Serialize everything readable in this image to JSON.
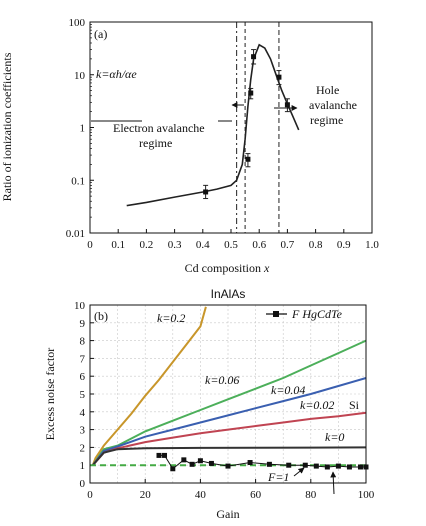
{
  "chart_data": [
    {
      "type": "line",
      "panel_label": "(a)",
      "title": "",
      "xlabel_text": "Cd composition",
      "xlabel_var": "x",
      "ylabel": "Ratio of ionization coefficients",
      "x_scale": "linear",
      "y_scale": "log",
      "xlim": [
        0,
        1.0
      ],
      "ylim": [
        0.01,
        100
      ],
      "x_ticks": [
        "0",
        "0.1",
        "0.2",
        "0.3",
        "0.4",
        "0.5",
        "0.6",
        "0.7",
        "0.8",
        "0.9",
        "1.0"
      ],
      "y_ticks": [
        "0.01",
        "0.1",
        "1",
        "10",
        "100"
      ],
      "grid": false,
      "legend": "none",
      "formula": "k=αh/αe",
      "annotations": {
        "electron_regime_line1": "Electron avalanche",
        "electron_regime_line2": "regime",
        "hole_regime_line1": "Hole",
        "hole_regime_line2": "avalanche",
        "hole_regime_line3": "regime"
      },
      "vertical_lines_x": [
        0.52,
        0.55,
        0.67
      ],
      "curve": {
        "x": [
          0.13,
          0.2,
          0.3,
          0.4,
          0.45,
          0.5,
          0.52,
          0.54,
          0.55,
          0.56,
          0.57,
          0.58,
          0.6,
          0.62,
          0.64,
          0.66,
          0.68,
          0.7,
          0.72,
          0.74
        ],
        "y": [
          0.033,
          0.038,
          0.048,
          0.06,
          0.068,
          0.08,
          0.1,
          0.2,
          0.6,
          2.5,
          8,
          20,
          37,
          32,
          20,
          10,
          5,
          2.8,
          1.6,
          0.9
        ]
      },
      "data_points": [
        {
          "x": 0.41,
          "y": 0.06,
          "err_lo": 0.045,
          "err_hi": 0.08
        },
        {
          "x": 0.56,
          "y": 0.25,
          "err_lo": 0.18,
          "err_hi": 0.32
        },
        {
          "x": 0.57,
          "y": 4.5,
          "err_lo": 3.5,
          "err_hi": 5.5
        },
        {
          "x": 0.58,
          "y": 22,
          "err_lo": 16,
          "err_hi": 30
        },
        {
          "x": 0.67,
          "y": 9,
          "err_lo": 6.5,
          "err_hi": 12
        },
        {
          "x": 0.7,
          "y": 2.7,
          "err_lo": 2.0,
          "err_hi": 3.5
        }
      ]
    },
    {
      "type": "line",
      "panel_label": "(b)",
      "title": "InAlAs",
      "xlabel": "Gain",
      "ylabel": "Excess noise factor",
      "xlim": [
        0,
        100
      ],
      "ylim": [
        0,
        10
      ],
      "x_ticks": [
        "0",
        "20",
        "40",
        "60",
        "80",
        "100"
      ],
      "y_ticks": [
        "0",
        "1",
        "2",
        "3",
        "4",
        "5",
        "6",
        "7",
        "8",
        "9",
        "10"
      ],
      "grid": true,
      "legend": "top-right",
      "legend_label": "F HgCdTe",
      "series": [
        {
          "name": "k=0.2",
          "color": "#c8962a",
          "x": [
            1,
            2,
            5,
            10,
            15,
            20,
            25,
            30,
            35,
            40,
            42
          ],
          "y": [
            1,
            1.4,
            2.1,
            3.0,
            3.9,
            4.9,
            5.8,
            6.8,
            7.8,
            8.8,
            9.9
          ]
        },
        {
          "name": "k=0.06",
          "color": "#4caf5a",
          "x": [
            1,
            5,
            10,
            20,
            30,
            40,
            50,
            60,
            70,
            80,
            90,
            100
          ],
          "y": [
            1,
            1.9,
            2.1,
            2.9,
            3.5,
            4.1,
            4.7,
            5.3,
            5.9,
            6.6,
            7.3,
            8.0
          ]
        },
        {
          "name": "k=0.04",
          "color": "#3a5fb0",
          "x": [
            1,
            5,
            10,
            20,
            30,
            40,
            50,
            60,
            70,
            80,
            90,
            100
          ],
          "y": [
            1,
            1.8,
            2.05,
            2.6,
            3.0,
            3.4,
            3.8,
            4.2,
            4.6,
            5.0,
            5.45,
            5.9
          ]
        },
        {
          "name": "k=0.02",
          "color": "#c04452",
          "x": [
            1,
            5,
            10,
            20,
            30,
            40,
            50,
            60,
            70,
            80,
            90,
            100
          ],
          "y": [
            1,
            1.7,
            1.95,
            2.3,
            2.55,
            2.8,
            3.0,
            3.2,
            3.4,
            3.6,
            3.75,
            3.95
          ]
        },
        {
          "name": "k=0",
          "color": "#333333",
          "x": [
            1,
            5,
            10,
            20,
            40,
            60,
            80,
            100
          ],
          "y": [
            1,
            1.7,
            1.9,
            1.95,
            1.97,
            1.98,
            1.99,
            2.0
          ]
        },
        {
          "name": "F=1",
          "color": "#44aa44",
          "dashed": true,
          "x": [
            0,
            100
          ],
          "y": [
            1,
            1
          ]
        },
        {
          "name": "F HgCdTe",
          "color": "#111111",
          "marker": "square",
          "x": [
            25,
            27,
            30,
            34,
            37,
            40,
            44,
            50,
            58,
            65,
            72,
            78,
            82,
            86,
            90,
            94,
            98,
            100
          ],
          "y": [
            1.55,
            1.55,
            0.8,
            1.3,
            1.05,
            1.25,
            1.1,
            0.95,
            1.15,
            1.05,
            1.0,
            1.0,
            0.95,
            0.9,
            0.95,
            0.9,
            0.9,
            0.9
          ]
        }
      ],
      "curve_labels": {
        "k02": "k=0.2",
        "k006": "k=0.06",
        "k004": "k=0.04",
        "k002": "k=0.02",
        "si": "Si",
        "k0": "k=0",
        "f1": "F=1"
      }
    }
  ]
}
